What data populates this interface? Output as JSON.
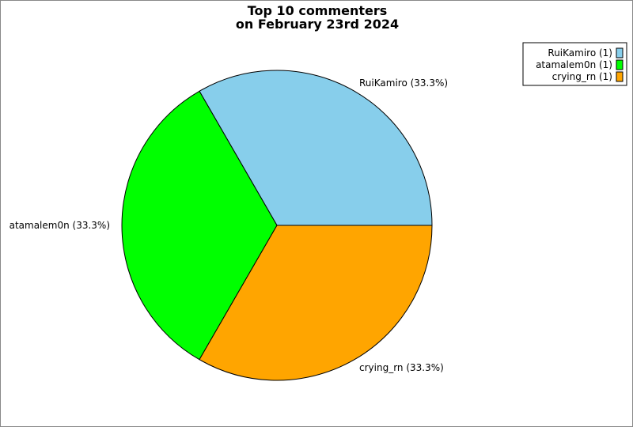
{
  "chart_data": {
    "type": "pie",
    "title": [
      "Top 10 commenters",
      "on February 23rd 2024"
    ],
    "slices": [
      {
        "label": "RuiKamiro",
        "value": 1,
        "percent": "33.3%",
        "color": "#87ceeb",
        "slice_label": "RuiKamiro (33.3%)",
        "legend_label": "RuiKamiro (1)"
      },
      {
        "label": "atamalem0n",
        "value": 1,
        "percent": "33.3%",
        "color": "#00ff00",
        "slice_label": "atamalem0n (33.3%)",
        "legend_label": "atamalem0n (1)"
      },
      {
        "label": "crying_rn",
        "value": 1,
        "percent": "33.3%",
        "color": "#ffa500",
        "slice_label": "crying_rn (33.3%)",
        "legend_label": "crying_rn (1)"
      }
    ],
    "start_angle_deg": 0,
    "direction": "counterclockwise",
    "legend_position": "top-right"
  }
}
